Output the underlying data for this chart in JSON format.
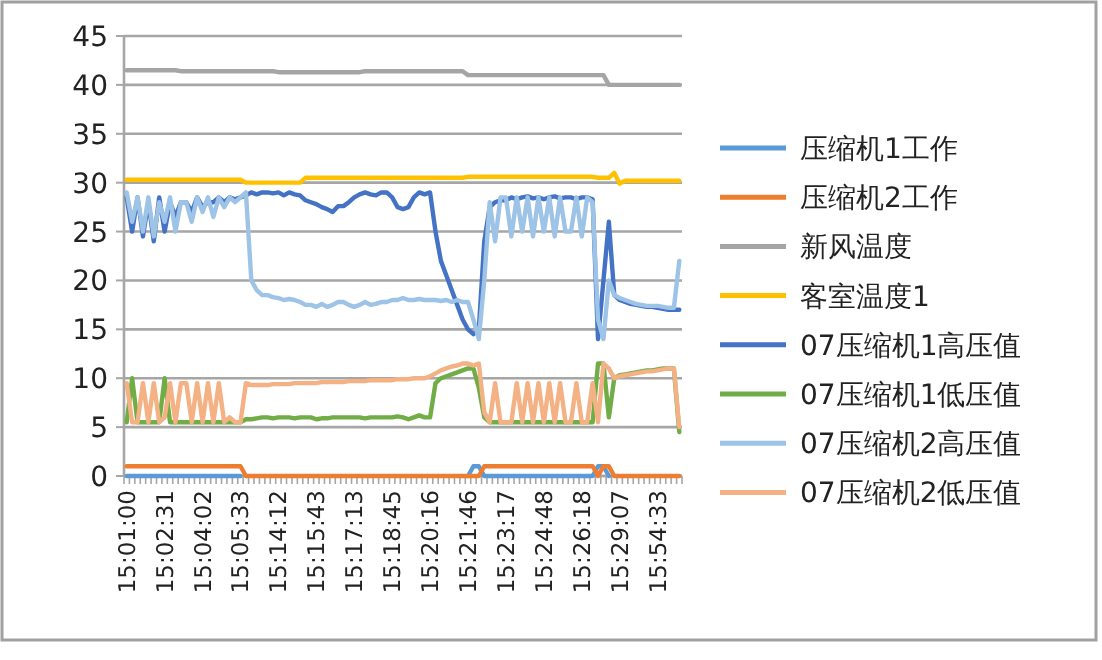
{
  "chart_data": {
    "type": "line",
    "legend": "right",
    "grid": "y",
    "ylim": [
      0,
      45
    ],
    "yticks": [
      0,
      5,
      10,
      15,
      20,
      25,
      30,
      35,
      40,
      45
    ],
    "categories": [
      "15:01:00",
      null,
      null,
      null,
      null,
      null,
      null,
      "15:02:31",
      null,
      null,
      null,
      null,
      null,
      null,
      "15:04:02",
      null,
      null,
      null,
      null,
      null,
      null,
      "15:05:33",
      null,
      null,
      null,
      null,
      null,
      null,
      "15:14:12",
      null,
      null,
      null,
      null,
      null,
      null,
      "15:15:43",
      null,
      null,
      null,
      null,
      null,
      null,
      "15:17:13",
      null,
      null,
      null,
      null,
      null,
      null,
      "15:18:45",
      null,
      null,
      null,
      null,
      null,
      null,
      "15:20:16",
      null,
      null,
      null,
      null,
      null,
      null,
      "15:21:46",
      null,
      null,
      null,
      null,
      null,
      null,
      "15:23:17",
      null,
      null,
      null,
      null,
      null,
      null,
      "15:24:48",
      null,
      null,
      null,
      null,
      null,
      null,
      "15:26:18",
      null,
      null,
      null,
      null,
      null,
      null,
      "15:29:07",
      null,
      null,
      null,
      null,
      null,
      null,
      "15:54:33",
      null,
      null,
      null,
      null
    ],
    "series": [
      {
        "name": "压缩机1工作",
        "color": "#5b9bd5",
        "values": [
          0,
          0,
          0,
          0,
          0,
          0,
          0,
          0,
          0,
          0,
          0,
          0,
          0,
          0,
          0,
          0,
          0,
          0,
          0,
          0,
          0,
          0,
          null,
          null,
          null,
          null,
          null,
          null,
          null,
          null,
          null,
          null,
          null,
          null,
          null,
          null,
          null,
          null,
          null,
          null,
          null,
          null,
          null,
          null,
          null,
          null,
          null,
          null,
          null,
          null,
          null,
          null,
          null,
          null,
          null,
          null,
          null,
          null,
          null,
          null,
          null,
          null,
          null,
          0,
          1,
          1,
          0,
          0,
          0,
          0,
          0,
          0,
          0,
          0,
          0,
          0,
          0,
          0,
          0,
          0,
          0,
          0,
          0,
          0,
          0,
          0,
          0,
          1,
          1,
          0,
          null,
          null,
          null,
          null,
          null,
          null,
          null,
          null,
          null,
          null,
          null,
          null,
          null
        ]
      },
      {
        "name": "压缩机2工作",
        "color": "#ed7d31",
        "values": [
          1,
          1,
          1,
          1,
          1,
          1,
          1,
          1,
          1,
          1,
          1,
          1,
          1,
          1,
          1,
          1,
          1,
          1,
          1,
          1,
          1,
          1,
          0,
          0,
          0,
          0,
          0,
          0,
          0,
          0,
          0,
          0,
          0,
          0,
          0,
          0,
          0,
          0,
          0,
          0,
          0,
          0,
          0,
          0,
          0,
          0,
          0,
          0,
          0,
          0,
          0,
          0,
          0,
          0,
          0,
          0,
          0,
          0,
          0,
          0,
          0,
          0,
          0,
          0,
          0,
          0,
          1,
          1,
          1,
          1,
          1,
          1,
          1,
          1,
          1,
          1,
          1,
          1,
          1,
          1,
          1,
          1,
          1,
          1,
          1,
          1,
          1,
          0,
          1,
          1,
          0,
          0,
          0,
          0,
          0,
          0,
          0,
          0,
          0,
          0,
          0,
          0,
          0
        ]
      },
      {
        "name": "新风温度",
        "color": "#a5a5a5",
        "values": [
          41.5,
          41.5,
          41.5,
          41.5,
          41.5,
          41.5,
          41.5,
          41.5,
          41.5,
          41.5,
          41.4,
          41.4,
          41.4,
          41.4,
          41.4,
          41.4,
          41.4,
          41.4,
          41.4,
          41.4,
          41.4,
          41.4,
          41.4,
          41.4,
          41.4,
          41.4,
          41.4,
          41.4,
          41.3,
          41.3,
          41.3,
          41.3,
          41.3,
          41.3,
          41.3,
          41.3,
          41.3,
          41.3,
          41.3,
          41.3,
          41.3,
          41.3,
          41.3,
          41.3,
          41.4,
          41.4,
          41.4,
          41.4,
          41.4,
          41.4,
          41.4,
          41.4,
          41.4,
          41.4,
          41.4,
          41.4,
          41.4,
          41.4,
          41.4,
          41.4,
          41.4,
          41.4,
          41.4,
          41.0,
          41.0,
          41.0,
          41.0,
          41.0,
          41.0,
          41.0,
          41.0,
          41.0,
          41.0,
          41.0,
          41.0,
          41.0,
          41.0,
          41.0,
          41.0,
          41.0,
          41.0,
          41.0,
          41.0,
          41.0,
          41.0,
          41.0,
          41.0,
          41.0,
          41.0,
          40.0,
          40.0,
          40.0,
          40.0,
          40.0,
          40.0,
          40.0,
          40.0,
          40.0,
          40.0,
          40.0,
          40.0,
          40.0,
          40.0
        ]
      },
      {
        "name": "客室温度1",
        "color": "#ffc000",
        "values": [
          30.3,
          30.3,
          30.3,
          30.3,
          30.3,
          30.3,
          30.3,
          30.3,
          30.3,
          30.3,
          30.3,
          30.3,
          30.3,
          30.3,
          30.3,
          30.3,
          30.3,
          30.3,
          30.3,
          30.3,
          30.3,
          30.3,
          30.0,
          30.0,
          30.0,
          30.0,
          30.0,
          30.0,
          30.0,
          30.0,
          30.0,
          30.0,
          30.0,
          30.5,
          30.5,
          30.5,
          30.5,
          30.5,
          30.5,
          30.5,
          30.5,
          30.5,
          30.5,
          30.5,
          30.5,
          30.5,
          30.5,
          30.5,
          30.5,
          30.5,
          30.5,
          30.5,
          30.5,
          30.5,
          30.5,
          30.5,
          30.5,
          30.5,
          30.5,
          30.5,
          30.5,
          30.5,
          30.5,
          30.6,
          30.6,
          30.6,
          30.6,
          30.6,
          30.6,
          30.6,
          30.6,
          30.6,
          30.6,
          30.6,
          30.6,
          30.6,
          30.6,
          30.6,
          30.6,
          30.6,
          30.6,
          30.6,
          30.6,
          30.6,
          30.6,
          30.6,
          30.6,
          30.5,
          30.5,
          30.5,
          31.0,
          29.9,
          30.2,
          30.2,
          30.2,
          30.2,
          30.2,
          30.2,
          30.2,
          30.2,
          30.2,
          30.2,
          30.2
        ]
      },
      {
        "name": "07压缩机1高压值",
        "color": "#4472c4",
        "values": [
          28.5,
          25,
          28.5,
          24.5,
          28,
          24,
          28.5,
          25,
          28,
          26.5,
          28,
          28,
          27,
          28.5,
          27.5,
          28,
          28,
          28.5,
          28,
          28.5,
          28.3,
          28.5,
          28.7,
          29,
          28.8,
          29,
          29,
          28.9,
          29,
          28.7,
          29,
          28.8,
          28.7,
          28.2,
          28,
          27.8,
          27.5,
          27.3,
          27,
          27.6,
          27.6,
          28,
          28.5,
          28.8,
          29,
          28.8,
          28.7,
          29,
          29,
          28.5,
          27.5,
          27.3,
          27.5,
          28.5,
          29,
          28.8,
          29,
          25,
          22,
          20.5,
          19,
          17.5,
          16,
          15,
          14.5,
          15,
          24,
          27.5,
          28,
          28.2,
          28.2,
          28.5,
          28.3,
          28.5,
          28.6,
          28.4,
          28.5,
          28.3,
          28.5,
          28.6,
          28.4,
          28.5,
          28.5,
          28.3,
          28.5,
          28.5,
          28.3,
          14,
          20,
          26,
          18.5,
          18,
          17.8,
          17.6,
          17.5,
          17.4,
          17.3,
          17.3,
          17.2,
          17.1,
          17,
          17,
          17
        ]
      },
      {
        "name": "07压缩机1低压值",
        "color": "#70ad47",
        "values": [
          5.5,
          10,
          5.5,
          5.5,
          5.5,
          5.5,
          5.5,
          10,
          5.5,
          5.5,
          5.5,
          5.5,
          5.5,
          5.5,
          5.5,
          5.5,
          5.5,
          5.5,
          5.5,
          5.5,
          5.5,
          5.5,
          5.8,
          5.8,
          5.9,
          6,
          6,
          5.9,
          6,
          6,
          6,
          5.9,
          6,
          6,
          6,
          5.8,
          5.9,
          5.9,
          6,
          6,
          6,
          6,
          6,
          6,
          5.9,
          6,
          6,
          6,
          6,
          6,
          6.1,
          6,
          5.8,
          6,
          6.2,
          6,
          6,
          9.5,
          10,
          10.2,
          10.4,
          10.6,
          10.8,
          11,
          11,
          9,
          6,
          5.5,
          5.5,
          5.5,
          5.5,
          5.5,
          5.5,
          5.5,
          5.5,
          5.5,
          5.5,
          5.5,
          5.5,
          5.5,
          5.5,
          5.5,
          5.5,
          5.5,
          5.5,
          5.5,
          5.5,
          11.5,
          11.5,
          6,
          10,
          10.3,
          10.4,
          10.5,
          10.6,
          10.7,
          10.8,
          10.8,
          10.9,
          11,
          11,
          11,
          4.5
        ]
      },
      {
        "name": "07压缩机2高压值",
        "color": "#9dc3e6",
        "values": [
          29,
          26,
          28.5,
          25,
          28.5,
          24.5,
          28,
          26,
          28.5,
          25,
          28,
          28,
          26,
          28.5,
          27,
          28.5,
          26.5,
          28.5,
          27.5,
          28.5,
          28,
          28.5,
          29,
          20,
          19,
          18.5,
          18.5,
          18.3,
          18.2,
          18,
          18.1,
          18,
          17.8,
          17.5,
          17.5,
          17.3,
          17.6,
          17.3,
          17.5,
          17.8,
          17.8,
          17.5,
          17.3,
          17.5,
          17.8,
          17.5,
          17.6,
          17.8,
          17.8,
          18,
          18,
          18.2,
          18,
          18,
          18.1,
          18,
          18,
          18,
          17.9,
          18,
          17.8,
          18,
          17.8,
          17.8,
          16,
          14,
          20,
          28,
          24,
          28.5,
          28.5,
          24.5,
          28.5,
          25,
          28.5,
          24.5,
          28.5,
          25,
          28.5,
          24.5,
          28.5,
          25,
          25,
          28.5,
          24.5,
          28.5,
          28,
          16,
          14,
          20,
          18.5,
          18.2,
          18,
          17.8,
          17.6,
          17.5,
          17.4,
          17.4,
          17.4,
          17.3,
          17.2,
          17.2,
          22
        ]
      },
      {
        "name": "07压缩机2低压值",
        "color": "#f4b183",
        "values": [
          9.5,
          5.5,
          5.5,
          9.5,
          5.5,
          9.5,
          5.5,
          6,
          9.5,
          5.5,
          9.5,
          9.5,
          5.5,
          9.5,
          5.5,
          9.5,
          5.5,
          9.5,
          5.5,
          6,
          5.5,
          5.5,
          9.5,
          9.3,
          9.3,
          9.3,
          9.3,
          9.4,
          9.4,
          9.4,
          9.4,
          9.5,
          9.5,
          9.5,
          9.5,
          9.5,
          9.6,
          9.6,
          9.6,
          9.6,
          9.6,
          9.7,
          9.7,
          9.7,
          9.7,
          9.8,
          9.8,
          9.8,
          9.8,
          9.8,
          9.9,
          9.9,
          9.9,
          10,
          10,
          10,
          10.2,
          10.5,
          10.8,
          11,
          11.2,
          11.3,
          11.5,
          11.5,
          11.3,
          11.5,
          6.5,
          5.5,
          9.5,
          5.5,
          5.5,
          5.5,
          9.5,
          5.5,
          9.5,
          5.5,
          9.5,
          5.5,
          9.5,
          5.5,
          9.5,
          5.5,
          5.5,
          9.5,
          5.5,
          5.5,
          9.5,
          5.5,
          11.5,
          11,
          10,
          10.2,
          10.3,
          10.4,
          10.5,
          10.6,
          10.7,
          10.7,
          10.8,
          10.9,
          11,
          11,
          5
        ]
      }
    ]
  }
}
